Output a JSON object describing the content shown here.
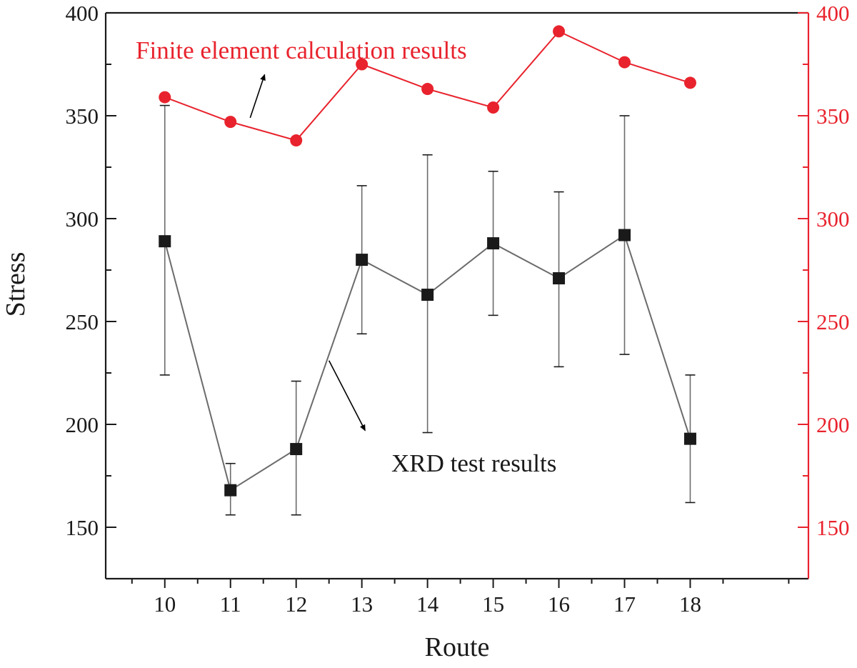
{
  "chart_data": {
    "type": "line",
    "title": "",
    "xlabel": "Route",
    "ylabel": "Stress",
    "categories": [
      10,
      11,
      12,
      13,
      14,
      15,
      16,
      17,
      18
    ],
    "xlim": [
      9.1,
      19.8
    ],
    "ylim": [
      125,
      400
    ],
    "yticks": [
      150,
      200,
      250,
      300,
      350,
      400
    ],
    "right_axis": {
      "ylim": [
        125,
        400
      ],
      "yticks": [
        150,
        200,
        250,
        300,
        350,
        400
      ],
      "color": "#e8232d"
    },
    "grid": false,
    "series": [
      {
        "name": "XRD test results",
        "axis": "left",
        "marker": "square",
        "line_color": "#6b6b6b",
        "marker_color": "#1a1a1a",
        "values": [
          289,
          168,
          188,
          280,
          263,
          288,
          271,
          292,
          193
        ],
        "error_low": [
          224,
          156,
          156,
          244,
          196,
          253,
          228,
          234,
          162
        ],
        "error_high": [
          355,
          181,
          221,
          316,
          331,
          323,
          313,
          350,
          224
        ]
      },
      {
        "name": "Finite element calculation results",
        "axis": "right",
        "marker": "circle",
        "line_color": "#e8232d",
        "marker_color": "#e8232d",
        "values": [
          359,
          347,
          338,
          375,
          363,
          354,
          391,
          376,
          366
        ]
      }
    ],
    "annotations": [
      {
        "text": "Finite element calculation results",
        "color": "#e8232d",
        "arrow_from": [
          11.3,
          349
        ],
        "arrow_to": [
          11.52,
          370
        ]
      },
      {
        "text": "XRD test results",
        "color": "#1a1a1a",
        "arrow_from": [
          12.5,
          231
        ],
        "arrow_to": [
          13.05,
          197
        ]
      }
    ]
  }
}
